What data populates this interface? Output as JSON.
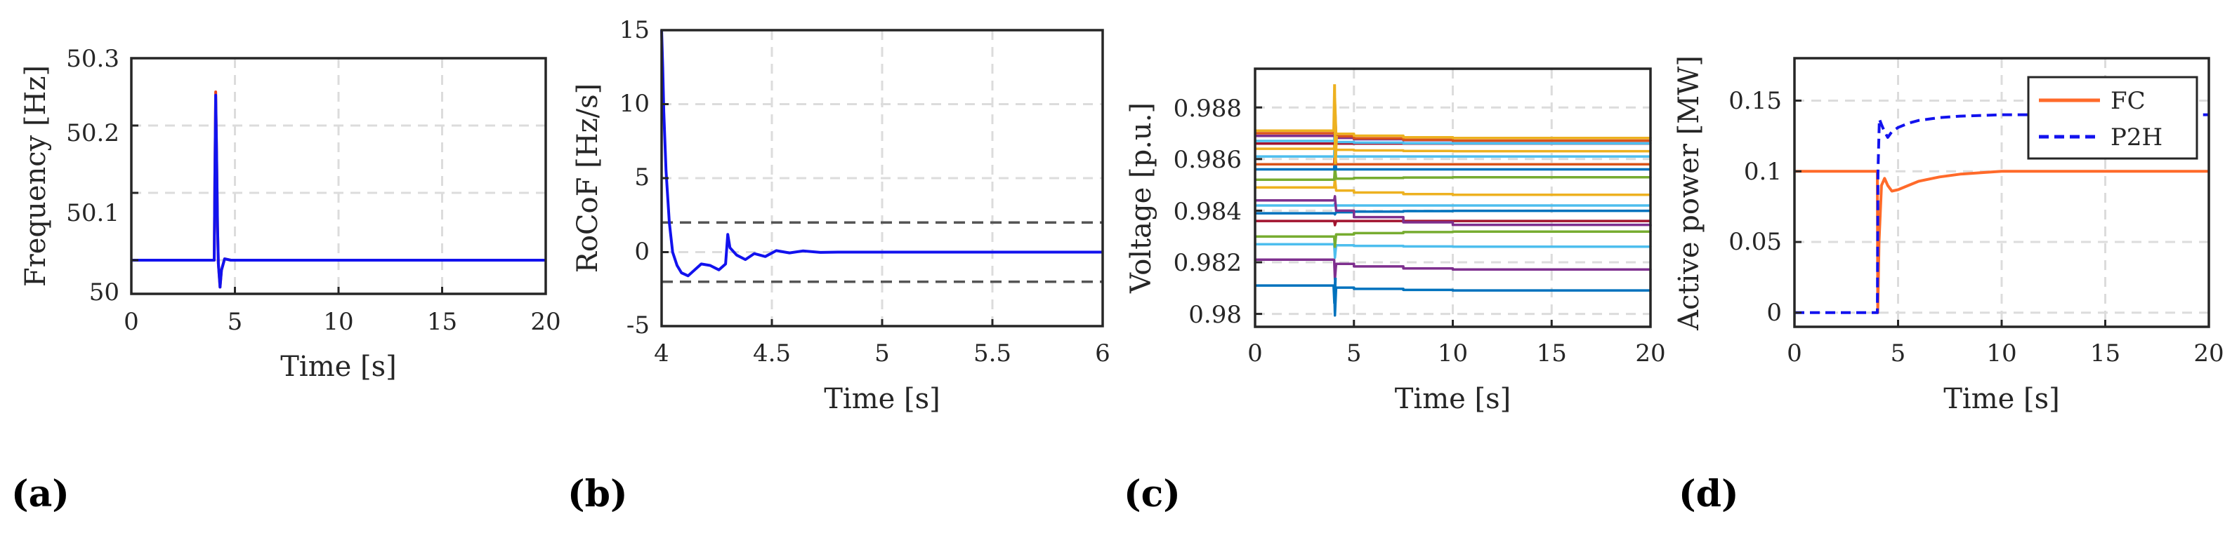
{
  "chart_data": [
    {
      "panel": "(a)",
      "type": "line",
      "xlabel": "Time [s]",
      "ylabel": "Frequency [Hz]",
      "xlim": [
        0,
        20
      ],
      "ylim": [
        49.95,
        50.3
      ],
      "xticks": [
        0,
        5,
        10,
        15,
        20
      ],
      "yticks": [
        50,
        50.1,
        50.2,
        50.3
      ],
      "xtick_labels": [
        "0",
        "5",
        "10",
        "15",
        "20"
      ],
      "ytick_labels": [
        "50",
        "50.1",
        "50.2",
        "50.3"
      ],
      "grid": true,
      "series": [
        {
          "name": "frequency (red)",
          "color": "#e8461e",
          "width": 4,
          "x": [
            0,
            4.0,
            4.03,
            4.07,
            4.12,
            4.16,
            4.2,
            4.28,
            4.35,
            4.5,
            4.8,
            5.2,
            20
          ],
          "y": [
            50,
            50,
            50.12,
            50.25,
            50.15,
            50.05,
            49.995,
            49.96,
            49.985,
            50.002,
            50.0,
            50.0,
            50.0
          ]
        },
        {
          "name": "frequency (blue)",
          "color": "#1212ee",
          "width": 4,
          "x": [
            0,
            4.0,
            4.03,
            4.07,
            4.12,
            4.16,
            4.2,
            4.28,
            4.35,
            4.5,
            4.8,
            5.2,
            20
          ],
          "y": [
            50,
            50,
            50.12,
            50.245,
            50.15,
            50.05,
            49.995,
            49.96,
            49.985,
            50.002,
            50.0,
            50.0,
            50.0
          ]
        }
      ]
    },
    {
      "panel": "(b)",
      "type": "line",
      "xlabel": "Time [s]",
      "ylabel": "RoCoF [Hz/s]",
      "xlim": [
        4,
        6
      ],
      "ylim": [
        -5,
        15
      ],
      "xticks": [
        4,
        4.5,
        5,
        5.5,
        6
      ],
      "yticks": [
        -5,
        0,
        5,
        10,
        15
      ],
      "xtick_labels": [
        "4",
        "4.5",
        "5",
        "5.5",
        "6"
      ],
      "ytick_labels": [
        "-5",
        "0",
        "5",
        "10",
        "15"
      ],
      "grid": true,
      "reference_lines": [
        {
          "y": 2,
          "color": "#555555",
          "dash": true
        },
        {
          "y": -2,
          "color": "#555555",
          "dash": true
        }
      ],
      "series": [
        {
          "name": "RoCoF",
          "color": "#1212ee",
          "width": 4,
          "x": [
            4.0,
            4.005,
            4.01,
            4.02,
            4.035,
            4.05,
            4.07,
            4.09,
            4.12,
            4.15,
            4.18,
            4.22,
            4.26,
            4.29,
            4.3,
            4.31,
            4.34,
            4.38,
            4.42,
            4.47,
            4.52,
            4.58,
            4.64,
            4.72,
            4.8,
            5.0,
            5.5,
            6.0
          ],
          "y": [
            15,
            12.5,
            9.5,
            5.5,
            2.0,
            0.0,
            -0.9,
            -1.4,
            -1.6,
            -1.2,
            -0.8,
            -0.9,
            -1.2,
            -0.8,
            1.2,
            0.3,
            -0.2,
            -0.5,
            -0.1,
            -0.3,
            0.1,
            -0.05,
            0.08,
            -0.02,
            0.0,
            0.0,
            0.0,
            0.0
          ]
        }
      ]
    },
    {
      "panel": "(c)",
      "type": "line",
      "xlabel": "Time [s]",
      "ylabel": "Voltage [p.u.]",
      "xlim": [
        0,
        20
      ],
      "ylim": [
        0.9795,
        0.9895
      ],
      "xticks": [
        0,
        5,
        10,
        15,
        20
      ],
      "yticks": [
        0.98,
        0.982,
        0.984,
        0.986,
        0.988
      ],
      "xtick_labels": [
        "0",
        "5",
        "10",
        "15",
        "20"
      ],
      "ytick_labels": [
        "0.98",
        "0.982",
        "0.984",
        "0.986",
        "0.988"
      ],
      "grid": true,
      "series": [
        {
          "name": "bus 1",
          "color": "#0072bd",
          "v0": 0.9811,
          "vend": 0.9809
        },
        {
          "name": "bus 2",
          "color": "#7e2f8e",
          "v0": 0.9821,
          "vend": 0.9817
        },
        {
          "name": "bus 3",
          "color": "#4dbeee",
          "v0": 0.9827,
          "vend": 0.9826
        },
        {
          "name": "bus 4",
          "color": "#77ac30",
          "v0": 0.983,
          "vend": 0.9832
        },
        {
          "name": "bus 5",
          "color": "#a2142f",
          "v0": 0.9836,
          "vend": 0.9836
        },
        {
          "name": "bus 6",
          "color": "#0072bd",
          "v0": 0.9839,
          "vend": 0.984
        },
        {
          "name": "bus 7",
          "color": "#4dbeee",
          "v0": 0.9842,
          "vend": 0.9842
        },
        {
          "name": "bus 8",
          "color": "#7e2f8e",
          "v0": 0.9844,
          "vend": 0.9834
        },
        {
          "name": "bus 9",
          "color": "#edb120",
          "v0": 0.9849,
          "vend": 0.9846
        },
        {
          "name": "bus 10",
          "color": "#77ac30",
          "v0": 0.9852,
          "vend": 0.9853
        },
        {
          "name": "bus 11",
          "color": "#0072bd",
          "v0": 0.9856,
          "vend": 0.9856
        },
        {
          "name": "bus 12",
          "color": "#d95319",
          "v0": 0.9858,
          "vend": 0.9858
        },
        {
          "name": "bus 13",
          "color": "#4dbeee",
          "v0": 0.9861,
          "vend": 0.9861
        },
        {
          "name": "bus 14",
          "color": "#edb120",
          "v0": 0.9864,
          "vend": 0.9863
        },
        {
          "name": "bus 15",
          "color": "#a2142f",
          "v0": 0.9866,
          "vend": 0.9866
        },
        {
          "name": "bus 16",
          "color": "#4dbeee",
          "v0": 0.9867,
          "vend": 0.9866
        },
        {
          "name": "bus 17",
          "color": "#7e2f8e",
          "v0": 0.9869,
          "vend": 0.9867
        },
        {
          "name": "bus 18",
          "color": "#d95319",
          "v0": 0.987,
          "vend": 0.9867
        },
        {
          "name": "bus 19",
          "color": "#edb120",
          "v0": 0.9871,
          "vend": 0.9868
        }
      ]
    },
    {
      "panel": "(d)",
      "type": "line",
      "xlabel": "Time [s]",
      "ylabel": "Active power [MW]",
      "xlim": [
        0,
        20
      ],
      "ylim": [
        -0.01,
        0.18
      ],
      "xticks": [
        0,
        5,
        10,
        15,
        20
      ],
      "yticks": [
        0,
        0.05,
        0.1,
        0.15
      ],
      "xtick_labels": [
        "0",
        "5",
        "10",
        "15",
        "20"
      ],
      "ytick_labels": [
        "0",
        "0.05",
        "0.1",
        "0.15"
      ],
      "grid": true,
      "legend_position": "top-right",
      "series": [
        {
          "name": "FC",
          "color": "#ff6a2a",
          "dash": false,
          "width": 4,
          "x": [
            0,
            4.0,
            4.02,
            4.08,
            4.2,
            4.35,
            4.5,
            4.7,
            5.0,
            5.5,
            6,
            7,
            8,
            9,
            10,
            12,
            20
          ],
          "y": [
            0.1,
            0.1,
            0.0,
            0.05,
            0.09,
            0.095,
            0.09,
            0.086,
            0.087,
            0.09,
            0.093,
            0.096,
            0.098,
            0.099,
            0.1,
            0.1,
            0.1
          ]
        },
        {
          "name": "P2H",
          "color": "#1212ee",
          "dash": true,
          "width": 4,
          "x": [
            0,
            3.9,
            4.0,
            4.03,
            4.1,
            4.2,
            4.35,
            4.5,
            4.7,
            5.0,
            5.5,
            6,
            7,
            8,
            9,
            10,
            12,
            20
          ],
          "y": [
            0,
            0,
            0,
            0.1,
            0.137,
            0.133,
            0.128,
            0.124,
            0.128,
            0.131,
            0.134,
            0.136,
            0.138,
            0.139,
            0.1395,
            0.14,
            0.14,
            0.14
          ]
        }
      ]
    }
  ]
}
